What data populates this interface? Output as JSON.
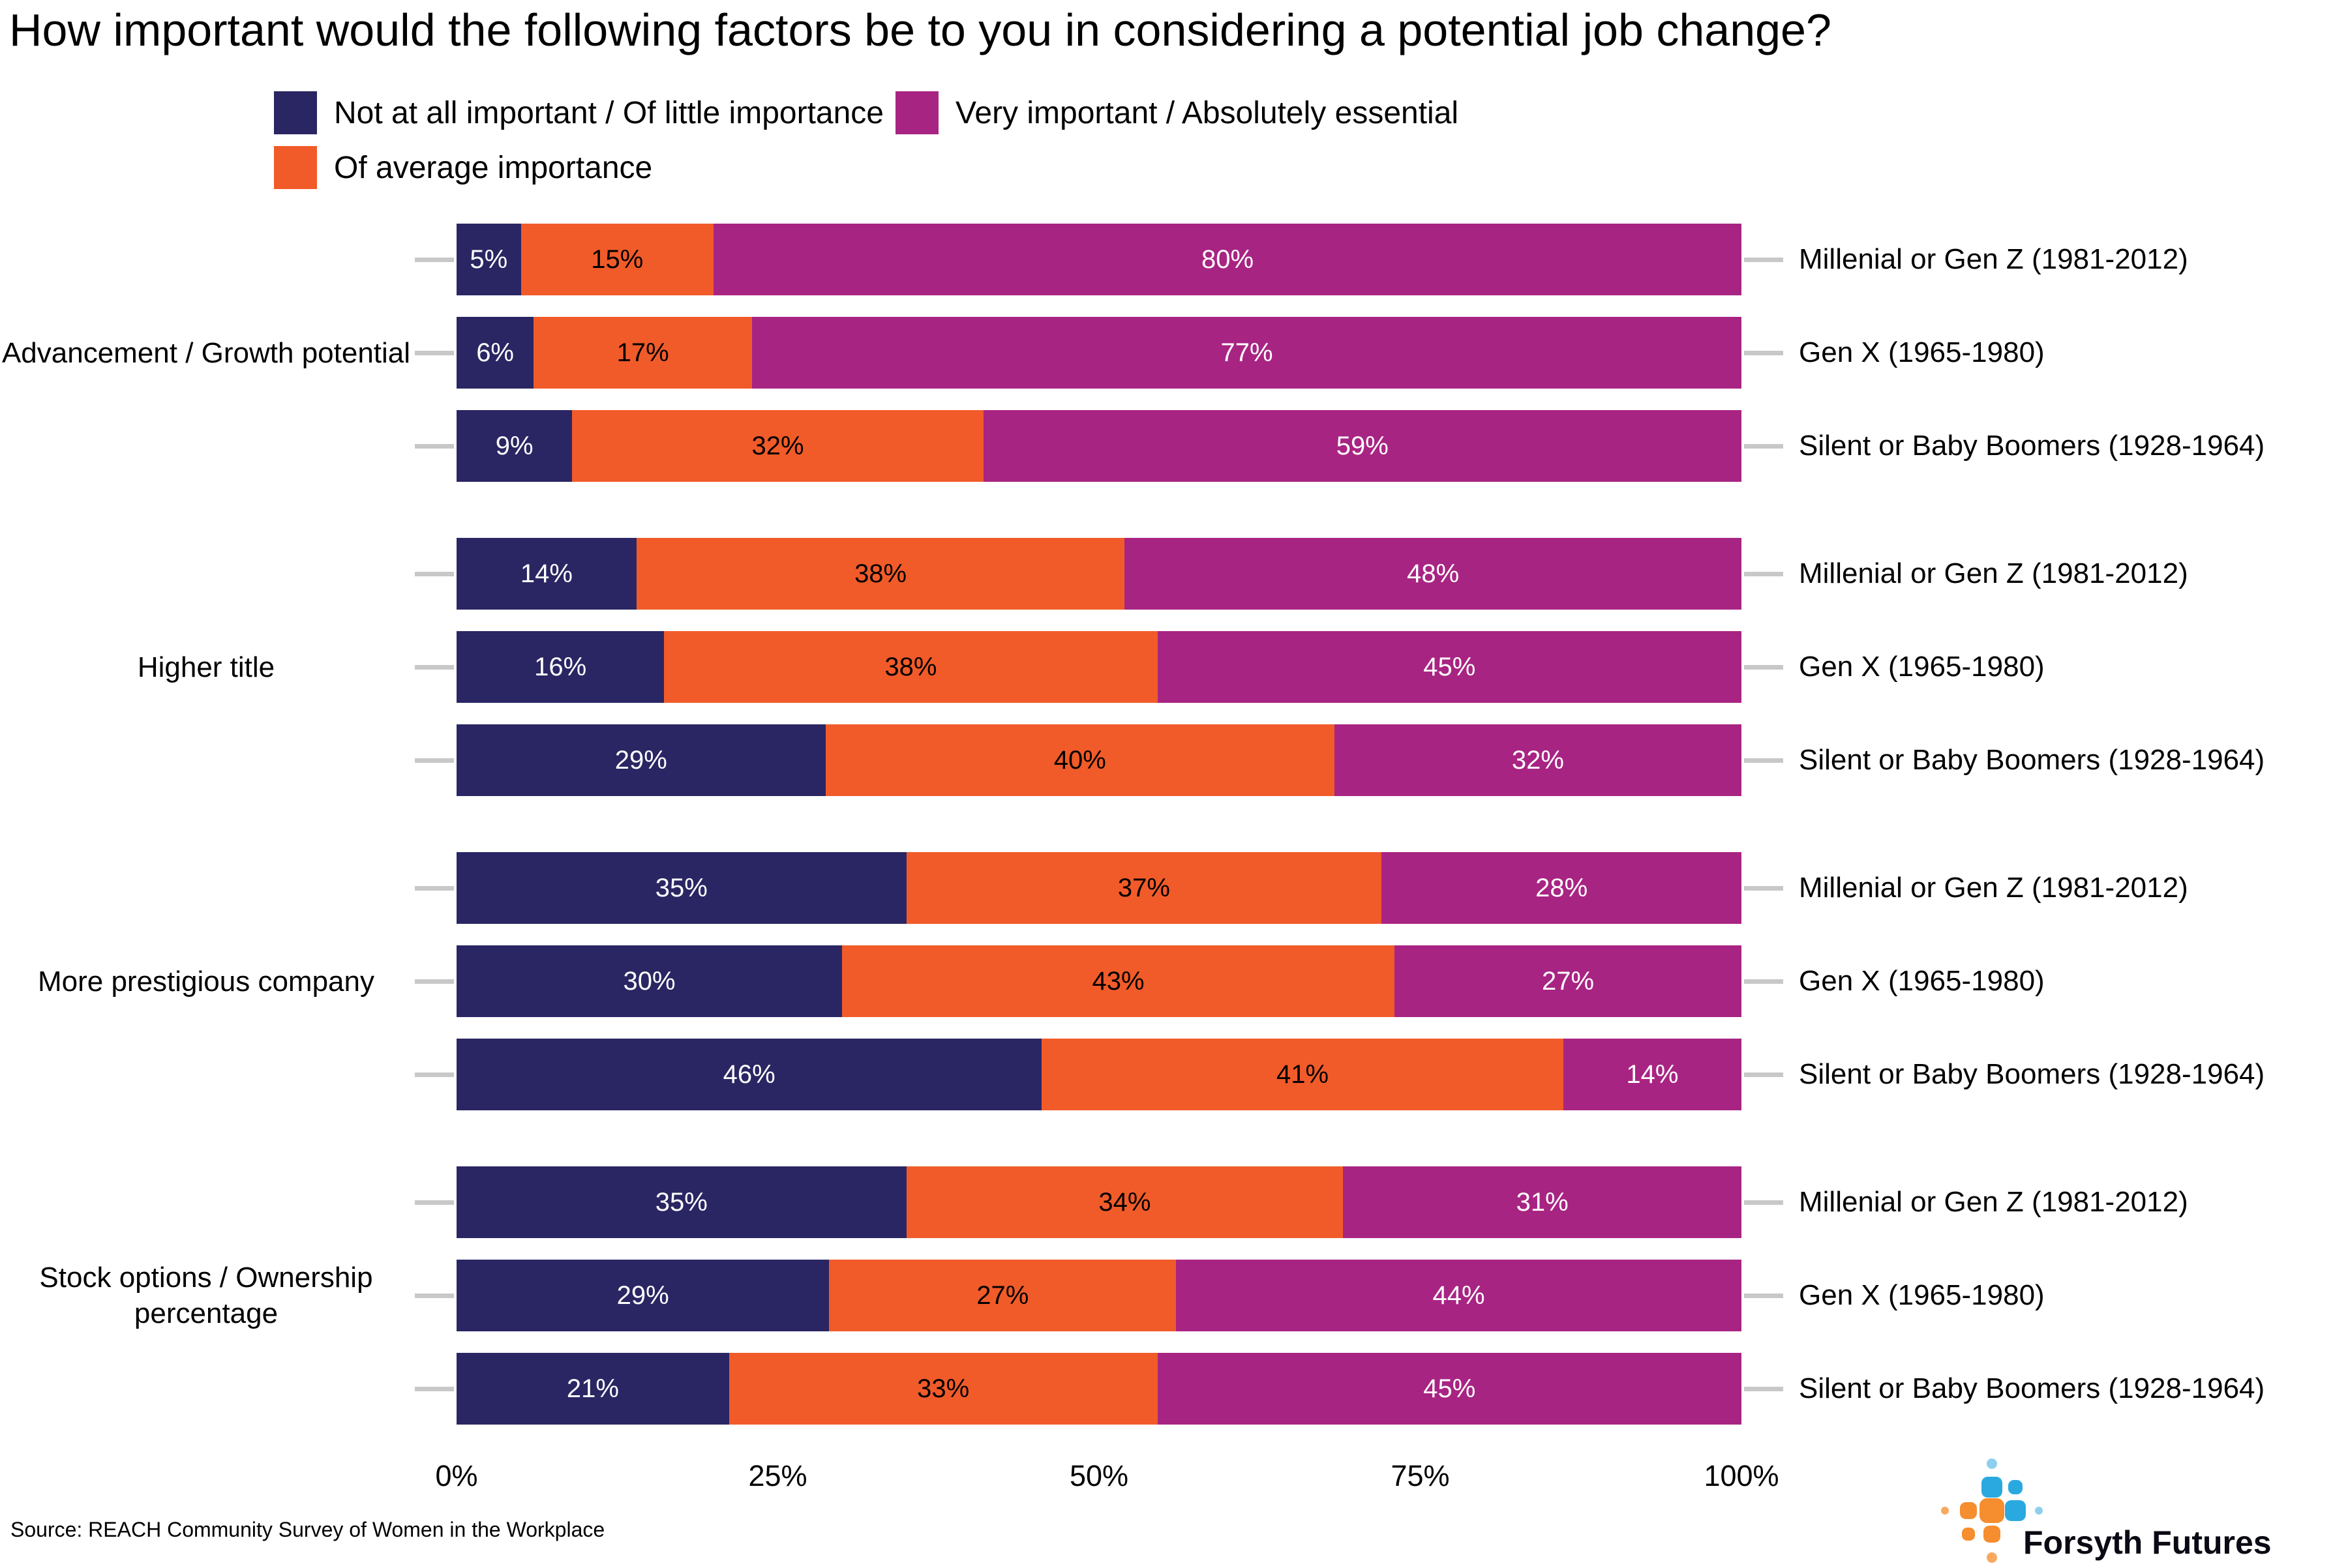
{
  "title": "How important would the following factors be to you in considering a potential job change?",
  "source": "Source: REACH Community Survey of Women in the Workplace",
  "logo": {
    "text": "Forsyth Futures"
  },
  "colors": {
    "not_important": "#2a2663",
    "average": "#f15b29",
    "very_important": "#a82483",
    "axis_tick": "#c8c8c8",
    "logo_blue": "#2aa9e0",
    "logo_light_blue": "#8ecfee",
    "logo_orange": "#f68d2e",
    "logo_light_orange": "#f8a95f"
  },
  "chart_data": {
    "type": "bar",
    "stacked": true,
    "orientation": "horizontal",
    "legend_position": "top",
    "grid": false,
    "xlim": [
      0,
      100
    ],
    "x_tick_labels": [
      "0%",
      "25%",
      "50%",
      "75%",
      "100%"
    ],
    "value_suffix": "%",
    "series": [
      {
        "name": "Not at all important / Of little importance",
        "color": "#2a2663",
        "label_color": "#ffffff",
        "key": "not-important"
      },
      {
        "name": "Of average importance",
        "color": "#f15b29",
        "label_color": "#000000",
        "key": "average-importance"
      },
      {
        "name": "Very important / Absolutely essential",
        "color": "#a82483",
        "label_color": "#ffffff",
        "key": "very-important"
      }
    ],
    "groups": [
      {
        "label": "Advancement / Growth potential",
        "rows": [
          {
            "label": "Millenial or Gen Z (1981-2012)",
            "values": [
              5,
              15,
              80
            ]
          },
          {
            "label": "Gen X (1965-1980)",
            "values": [
              6,
              17,
              77
            ]
          },
          {
            "label": "Silent or Baby Boomers (1928-1964)",
            "values": [
              9,
              32,
              59
            ]
          }
        ]
      },
      {
        "label": "Higher title",
        "rows": [
          {
            "label": "Millenial or Gen Z (1981-2012)",
            "values": [
              14,
              38,
              48
            ]
          },
          {
            "label": "Gen X (1965-1980)",
            "values": [
              16,
              38,
              45
            ]
          },
          {
            "label": "Silent or Baby Boomers (1928-1964)",
            "values": [
              29,
              40,
              32
            ]
          }
        ]
      },
      {
        "label": "More prestigious company",
        "rows": [
          {
            "label": "Millenial or Gen Z (1981-2012)",
            "values": [
              35,
              37,
              28
            ]
          },
          {
            "label": "Gen X (1965-1980)",
            "values": [
              30,
              43,
              27
            ]
          },
          {
            "label": "Silent or Baby Boomers (1928-1964)",
            "values": [
              46,
              41,
              14
            ]
          }
        ]
      },
      {
        "label": "Stock options / Ownership percentage",
        "rows": [
          {
            "label": "Millenial or Gen Z (1981-2012)",
            "values": [
              35,
              34,
              31
            ]
          },
          {
            "label": "Gen X (1965-1980)",
            "values": [
              29,
              27,
              44
            ]
          },
          {
            "label": "Silent or Baby Boomers (1928-1964)",
            "values": [
              21,
              33,
              45
            ]
          }
        ]
      }
    ]
  }
}
